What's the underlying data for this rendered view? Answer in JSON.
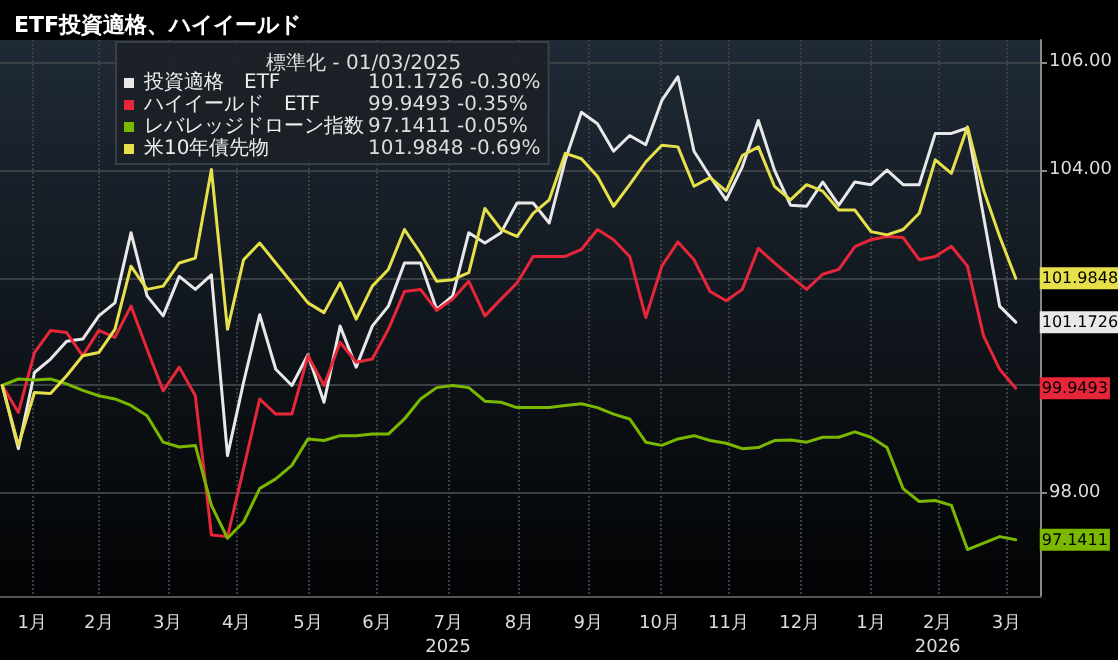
{
  "chart_data": {
    "type": "line",
    "title": "ETF投資適格、ハイイールド",
    "legend_title": "標準化 - 01/03/2025",
    "annotations": [
      "101.1726 -0.30%",
      "99.9493 -0.35%",
      "97.1411 -0.05%",
      "101.9848 -0.69%"
    ],
    "x": [
      "2025-01-03",
      "2025-01-10",
      "2025-01-17",
      "2025-01-24",
      "2025-01-31",
      "2025-02-07",
      "2025-02-14",
      "2025-02-21",
      "2025-02-28",
      "2025-03-07",
      "2025-03-14",
      "2025-03-21",
      "2025-03-28",
      "2025-04-04",
      "2025-04-11",
      "2025-04-18",
      "2025-04-25",
      "2025-05-02",
      "2025-05-09",
      "2025-05-16",
      "2025-05-23",
      "2025-05-30",
      "2025-06-06",
      "2025-06-13",
      "2025-06-20",
      "2025-06-27",
      "2025-07-04",
      "2025-07-11",
      "2025-07-18",
      "2025-07-25",
      "2025-08-01",
      "2025-08-08",
      "2025-08-15",
      "2025-08-22",
      "2025-08-29",
      "2025-09-05",
      "2025-09-12",
      "2025-09-19",
      "2025-09-26",
      "2025-10-03",
      "2025-10-10",
      "2025-10-17",
      "2025-10-24",
      "2025-10-31",
      "2025-11-07",
      "2025-11-14",
      "2025-11-21",
      "2025-11-28",
      "2025-12-05",
      "2025-12-12",
      "2025-12-19",
      "2025-12-26",
      "2026-01-02",
      "2026-01-09",
      "2026-01-16",
      "2026-01-23",
      "2026-01-30",
      "2026-02-06",
      "2026-02-13",
      "2026-02-20",
      "2026-02-27",
      "2026-03-06",
      "2026-03-13",
      "2026-03-20"
    ],
    "series": [
      {
        "name": "投資適格　ETF",
        "color": "#e8e8e8",
        "values": [
          100.0,
          98.83,
          100.24,
          100.49,
          100.82,
          100.86,
          101.29,
          101.53,
          102.83,
          101.66,
          101.29,
          102.02,
          101.78,
          102.05,
          98.7,
          100.06,
          101.31,
          100.3,
          100.0,
          100.57,
          99.69,
          101.1,
          100.34,
          101.1,
          101.47,
          102.27,
          102.27,
          101.41,
          101.66,
          102.83,
          102.64,
          102.83,
          103.38,
          103.38,
          103.01,
          104.18,
          105.06,
          104.85,
          104.34,
          104.63,
          104.46,
          105.28,
          105.72,
          104.34,
          103.87,
          103.44,
          104.05,
          104.91,
          103.99,
          103.34,
          103.32,
          103.77,
          103.34,
          103.77,
          103.72,
          103.99,
          103.72,
          103.72,
          104.67,
          104.67,
          104.77,
          103.13,
          101.47,
          101.1726
        ],
        "value_labels": [
          null,
          null,
          null,
          null,
          null,
          null,
          null,
          null,
          null,
          null,
          null,
          null,
          null,
          null,
          null,
          null,
          null,
          null,
          null,
          null,
          null,
          null,
          null,
          null,
          null,
          null,
          null,
          null,
          null,
          null,
          null,
          null,
          null,
          null,
          null,
          null,
          null,
          null,
          null,
          null,
          null,
          null,
          null,
          null,
          null,
          null,
          null,
          null,
          null,
          null,
          null,
          null,
          null,
          null,
          null,
          null,
          null,
          null,
          null,
          null,
          null,
          null,
          null,
          "101.1726"
        ]
      },
      {
        "name": "ハイイールド　ETF",
        "color": "#e8263a",
        "values": [
          100.0,
          99.5,
          100.61,
          101.02,
          100.98,
          100.55,
          101.02,
          100.89,
          101.47,
          100.67,
          99.9,
          100.34,
          99.81,
          97.23,
          97.2,
          98.46,
          99.75,
          99.47,
          99.47,
          100.55,
          100.0,
          100.8,
          100.43,
          100.49,
          101.04,
          101.74,
          101.78,
          101.39,
          101.6,
          101.93,
          101.29,
          101.6,
          101.9,
          102.39,
          102.39,
          102.39,
          102.52,
          102.89,
          102.7,
          102.39,
          101.26,
          102.21,
          102.66,
          102.33,
          101.74,
          101.57,
          101.78,
          102.54,
          102.27,
          102.02,
          101.78,
          102.06,
          102.15,
          102.57,
          102.7,
          102.76,
          102.74,
          102.33,
          102.39,
          102.58,
          102.21,
          100.92,
          100.3,
          99.9493
        ],
        "value_labels": [
          null,
          null,
          null,
          null,
          null,
          null,
          null,
          null,
          null,
          null,
          null,
          null,
          null,
          null,
          null,
          null,
          null,
          null,
          null,
          null,
          null,
          null,
          null,
          null,
          null,
          null,
          null,
          null,
          null,
          null,
          null,
          null,
          null,
          null,
          null,
          null,
          null,
          null,
          null,
          null,
          null,
          null,
          null,
          null,
          null,
          null,
          null,
          null,
          null,
          null,
          null,
          null,
          null,
          null,
          null,
          null,
          null,
          null,
          null,
          null,
          null,
          null,
          null,
          "99.9493"
        ]
      },
      {
        "name": "レバレッジドローン指数",
        "color": "#7ab800",
        "values": [
          100.0,
          100.12,
          100.1,
          100.12,
          100.03,
          99.91,
          99.81,
          99.75,
          99.63,
          99.44,
          98.95,
          98.86,
          98.89,
          97.78,
          97.17,
          97.47,
          98.09,
          98.27,
          98.52,
          99.01,
          98.98,
          99.07,
          99.07,
          99.1,
          99.1,
          99.38,
          99.75,
          99.96,
          100.0,
          99.96,
          99.71,
          99.69,
          99.59,
          99.59,
          99.59,
          99.63,
          99.66,
          99.59,
          99.47,
          99.38,
          98.95,
          98.89,
          99.01,
          99.07,
          98.98,
          98.93,
          98.83,
          98.85,
          98.98,
          98.99,
          98.95,
          99.04,
          99.04,
          99.14,
          99.04,
          98.85,
          98.09,
          97.85,
          97.87,
          97.78,
          96.96,
          97.08,
          97.2,
          97.1411
        ],
        "value_labels": [
          null,
          null,
          null,
          null,
          null,
          null,
          null,
          null,
          null,
          null,
          null,
          null,
          null,
          null,
          null,
          null,
          null,
          null,
          null,
          null,
          null,
          null,
          null,
          null,
          null,
          null,
          null,
          null,
          null,
          null,
          null,
          null,
          null,
          null,
          null,
          null,
          null,
          null,
          null,
          null,
          null,
          null,
          null,
          null,
          null,
          null,
          null,
          null,
          null,
          null,
          null,
          null,
          null,
          null,
          null,
          null,
          null,
          null,
          null,
          null,
          null,
          null,
          null,
          "97.1411"
        ]
      },
      {
        "name": "米10年債先物",
        "color": "#e6e04a",
        "values": [
          100.0,
          98.89,
          99.87,
          99.85,
          100.18,
          100.55,
          100.61,
          101.04,
          102.21,
          101.78,
          101.84,
          102.27,
          102.36,
          104.0,
          101.04,
          102.33,
          102.64,
          102.27,
          101.9,
          101.53,
          101.35,
          101.9,
          101.23,
          101.84,
          102.15,
          102.89,
          102.45,
          101.93,
          101.96,
          102.09,
          103.28,
          102.89,
          102.76,
          103.19,
          103.44,
          104.3,
          104.2,
          103.87,
          103.32,
          103.72,
          104.14,
          104.45,
          104.42,
          103.69,
          103.85,
          103.6,
          104.26,
          104.42,
          103.69,
          103.44,
          103.72,
          103.6,
          103.25,
          103.25,
          102.85,
          102.79,
          102.89,
          103.19,
          104.18,
          103.93,
          104.79,
          103.62,
          102.76,
          101.9848
        ],
        "value_labels": [
          null,
          null,
          null,
          null,
          null,
          null,
          null,
          null,
          null,
          null,
          null,
          null,
          null,
          null,
          null,
          null,
          null,
          null,
          null,
          null,
          null,
          null,
          null,
          null,
          null,
          null,
          null,
          null,
          null,
          null,
          null,
          null,
          null,
          null,
          null,
          null,
          null,
          null,
          null,
          null,
          null,
          null,
          null,
          null,
          null,
          null,
          null,
          null,
          null,
          null,
          null,
          null,
          null,
          null,
          null,
          null,
          null,
          null,
          null,
          null,
          null,
          null,
          null,
          "101.9848"
        ]
      }
    ],
    "xlim": [
      "2025-01-02",
      "2026-03-31"
    ],
    "xticks": [
      {
        "value": "2025-01-16",
        "label": "1月"
      },
      {
        "value": "2025-02-14",
        "label": "2月"
      },
      {
        "value": "2025-03-16",
        "label": "3月"
      },
      {
        "value": "2025-04-15",
        "label": "4月"
      },
      {
        "value": "2025-05-16",
        "label": "5月"
      },
      {
        "value": "2025-06-15",
        "label": "6月"
      },
      {
        "value": "2025-07-16",
        "label": "7月\n2025"
      },
      {
        "value": "2025-08-16",
        "label": "8月"
      },
      {
        "value": "2025-09-15",
        "label": "9月"
      },
      {
        "value": "2025-10-16",
        "label": "10月"
      },
      {
        "value": "2025-11-15",
        "label": "11月"
      },
      {
        "value": "2025-12-16",
        "label": "12月"
      },
      {
        "value": "2026-01-16",
        "label": "1月"
      },
      {
        "value": "2026-02-14",
        "label": "2月\n2026"
      },
      {
        "value": "2026-03-16",
        "label": "3月"
      }
    ],
    "ylim": [
      96.1,
      106.4
    ],
    "yticks": [
      {
        "value": 98,
        "label": "98.00"
      },
      {
        "value": 100,
        "label": null
      },
      {
        "value": 102,
        "label": null
      },
      {
        "value": 104,
        "label": "104.00"
      },
      {
        "value": 106,
        "label": "106.00"
      }
    ],
    "grid": true,
    "legend": "top",
    "marker": "none",
    "line_style": "solid"
  }
}
